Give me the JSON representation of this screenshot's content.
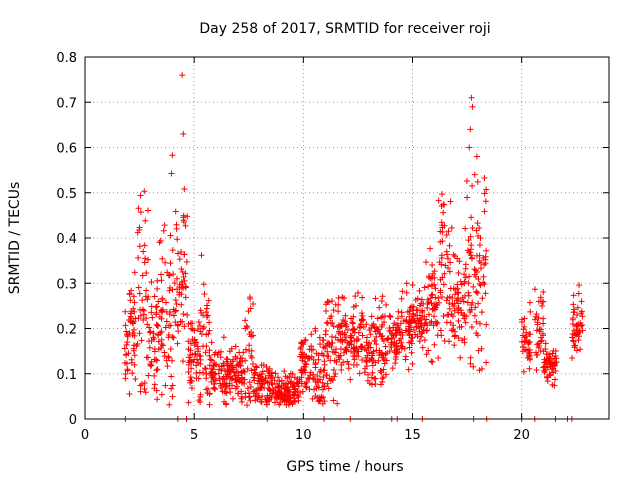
{
  "chart_data": {
    "type": "scatter",
    "title": "Day 258 of 2017, SRMTID for receiver roji",
    "xlabel": "GPS time / hours",
    "ylabel": "SRMTID / TECUs",
    "xlim": [
      0,
      24
    ],
    "ylim": [
      0,
      0.8
    ],
    "xticks": [
      0,
      5,
      10,
      15,
      20
    ],
    "yticks": [
      0,
      0.1,
      0.2,
      0.3,
      0.4,
      0.5,
      0.6,
      0.7,
      0.8
    ],
    "grid": true,
    "marker": "+",
    "color": "#ff0000",
    "series": [
      {
        "name": "SRMTID",
        "points": [
          [
            1.85,
            0.0
          ],
          [
            4.25,
            0.0
          ],
          [
            4.65,
            0.0
          ],
          [
            8.35,
            0.0
          ],
          [
            10.95,
            0.0
          ],
          [
            12.15,
            0.0
          ],
          [
            14.05,
            0.0
          ],
          [
            14.3,
            0.0
          ],
          [
            15.45,
            0.0
          ],
          [
            17.8,
            0.0
          ],
          [
            18.4,
            0.0
          ],
          [
            20.0,
            0.0
          ],
          [
            20.6,
            0.0
          ],
          [
            21.55,
            0.0
          ],
          [
            22.1,
            0.0
          ],
          [
            22.3,
            0.0
          ],
          [
            4.45,
            0.76
          ],
          [
            4.5,
            0.63
          ],
          [
            17.7,
            0.71
          ],
          [
            17.75,
            0.69
          ],
          [
            17.65,
            0.64
          ],
          [
            17.6,
            0.6
          ],
          [
            17.95,
            0.58
          ],
          [
            17.85,
            0.54
          ]
        ]
      }
    ],
    "envelope": [
      {
        "x0": 1.8,
        "x1": 2.0,
        "c": 0.15,
        "h": 0.13
      },
      {
        "x0": 2.0,
        "x1": 2.4,
        "c": 0.19,
        "h": 0.18
      },
      {
        "x0": 2.4,
        "x1": 2.9,
        "c": 0.28,
        "h": 0.32
      },
      {
        "x0": 2.9,
        "x1": 3.4,
        "c": 0.18,
        "h": 0.2
      },
      {
        "x0": 3.4,
        "x1": 3.9,
        "c": 0.22,
        "h": 0.26
      },
      {
        "x0": 3.9,
        "x1": 4.3,
        "c": 0.3,
        "h": 0.34
      },
      {
        "x0": 4.3,
        "x1": 4.7,
        "c": 0.3,
        "h": 0.3
      },
      {
        "x0": 4.7,
        "x1": 5.2,
        "c": 0.14,
        "h": 0.12
      },
      {
        "x0": 5.2,
        "x1": 5.7,
        "c": 0.17,
        "h": 0.24
      },
      {
        "x0": 5.7,
        "x1": 6.5,
        "c": 0.1,
        "h": 0.1
      },
      {
        "x0": 6.5,
        "x1": 7.3,
        "c": 0.1,
        "h": 0.09
      },
      {
        "x0": 7.3,
        "x1": 7.7,
        "c": 0.14,
        "h": 0.24
      },
      {
        "x0": 7.7,
        "x1": 8.5,
        "c": 0.07,
        "h": 0.08
      },
      {
        "x0": 8.5,
        "x1": 9.3,
        "c": 0.06,
        "h": 0.06
      },
      {
        "x0": 9.3,
        "x1": 9.8,
        "c": 0.06,
        "h": 0.06
      },
      {
        "x0": 9.8,
        "x1": 10.4,
        "c": 0.12,
        "h": 0.1
      },
      {
        "x0": 10.4,
        "x1": 11.0,
        "c": 0.1,
        "h": 0.14
      },
      {
        "x0": 11.0,
        "x1": 11.6,
        "c": 0.16,
        "h": 0.15
      },
      {
        "x0": 11.6,
        "x1": 12.2,
        "c": 0.17,
        "h": 0.12
      },
      {
        "x0": 12.2,
        "x1": 12.8,
        "c": 0.19,
        "h": 0.12
      },
      {
        "x0": 12.8,
        "x1": 13.3,
        "c": 0.15,
        "h": 0.1
      },
      {
        "x0": 13.3,
        "x1": 13.9,
        "c": 0.17,
        "h": 0.14
      },
      {
        "x0": 13.9,
        "x1": 14.5,
        "c": 0.18,
        "h": 0.08
      },
      {
        "x0": 14.5,
        "x1": 15.0,
        "c": 0.2,
        "h": 0.12
      },
      {
        "x0": 15.0,
        "x1": 15.6,
        "c": 0.22,
        "h": 0.1
      },
      {
        "x0": 15.6,
        "x1": 16.2,
        "c": 0.25,
        "h": 0.16
      },
      {
        "x0": 16.2,
        "x1": 16.8,
        "c": 0.33,
        "h": 0.24
      },
      {
        "x0": 16.8,
        "x1": 17.4,
        "c": 0.26,
        "h": 0.18
      },
      {
        "x0": 17.4,
        "x1": 18.0,
        "c": 0.3,
        "h": 0.28
      },
      {
        "x0": 18.0,
        "x1": 18.4,
        "c": 0.34,
        "h": 0.3
      },
      {
        "x0": 20.0,
        "x1": 20.4,
        "c": 0.18,
        "h": 0.1
      },
      {
        "x0": 20.6,
        "x1": 21.0,
        "c": 0.2,
        "h": 0.12
      },
      {
        "x0": 21.0,
        "x1": 21.6,
        "c": 0.12,
        "h": 0.06
      },
      {
        "x0": 22.3,
        "x1": 22.8,
        "c": 0.22,
        "h": 0.1
      }
    ]
  }
}
